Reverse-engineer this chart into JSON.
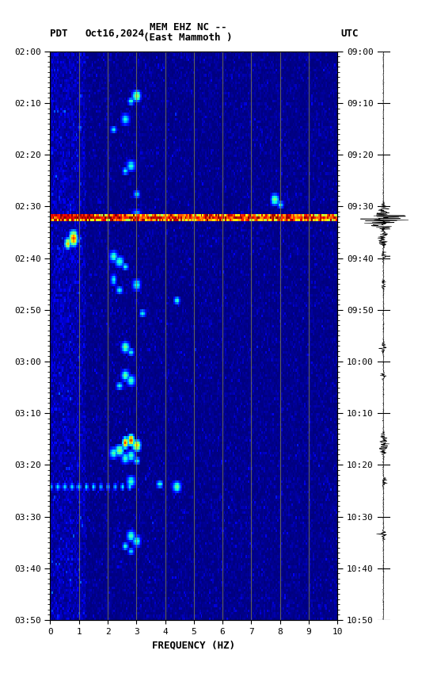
{
  "title_line1": "MEM EHZ NC --",
  "title_line2": "(East Mammoth )",
  "label_left": "PDT",
  "label_date": "Oct16,2024",
  "label_right": "UTC",
  "xlabel": "FREQUENCY (HZ)",
  "freq_min": 0,
  "freq_max": 10,
  "freq_ticks": [
    0,
    1,
    2,
    3,
    4,
    5,
    6,
    7,
    8,
    9,
    10
  ],
  "pdt_labels": [
    "02:00",
    "02:10",
    "02:20",
    "02:30",
    "02:40",
    "02:50",
    "03:00",
    "03:10",
    "03:20",
    "03:30",
    "03:40",
    "03:50"
  ],
  "utc_labels": [
    "09:00",
    "09:10",
    "09:20",
    "09:30",
    "09:40",
    "09:50",
    "10:00",
    "10:10",
    "10:20",
    "10:30",
    "10:40",
    "10:50"
  ],
  "background_color": "#ffffff",
  "colormap": "jet",
  "vmin": 0.0,
  "vmax": 1.0,
  "vertical_lines_freq": [
    1,
    2,
    3,
    4,
    5,
    6,
    7,
    8,
    9
  ],
  "vertical_line_color": "#888844",
  "fig_width": 5.52,
  "fig_height": 8.64,
  "seismogram_color": "#000000"
}
